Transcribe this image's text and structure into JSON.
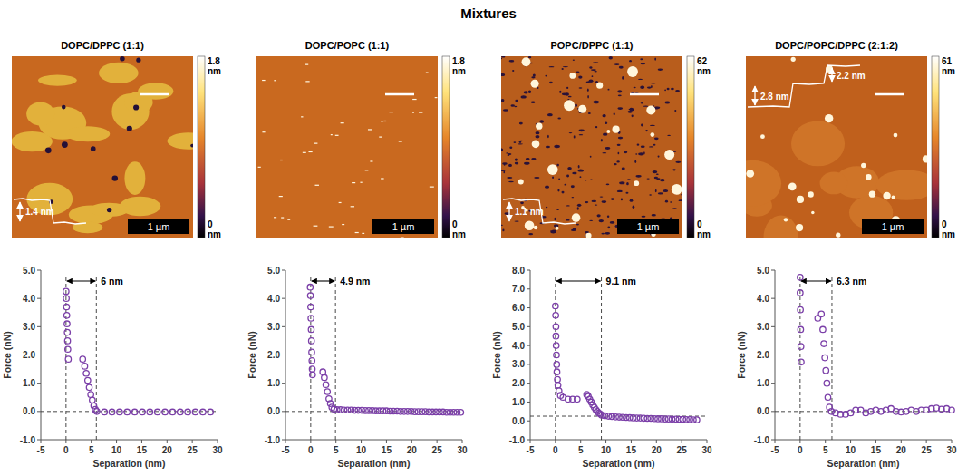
{
  "figure": {
    "title": "Mixtures",
    "images": [
      {
        "title": "DOPC/DPPC (1:1)",
        "colorbar_range": [
          0,
          1.8
        ],
        "colorbar_unit": "nm",
        "scale_bar": "1 µm",
        "profile_labels": [
          "1.4 nm"
        ]
      },
      {
        "title": "DOPC/POPC (1:1)",
        "colorbar_range": [
          0,
          1.8
        ],
        "colorbar_unit": "nm",
        "scale_bar": "1 µm",
        "profile_labels": []
      },
      {
        "title": "POPC/DPPC (1:1)",
        "colorbar_range": [
          0,
          62
        ],
        "colorbar_unit": "nm",
        "scale_bar": "1 µm",
        "profile_labels": [
          "1.1 nm"
        ]
      },
      {
        "title": "DOPC/POPC/DPPC (2:1:2)",
        "colorbar_range": [
          0,
          61
        ],
        "colorbar_unit": "nm",
        "scale_bar": "1 µm",
        "profile_labels": [
          "2.2 nm",
          "2.8 nm"
        ]
      }
    ]
  },
  "chart_data": [
    {
      "type": "scatter",
      "x_label": "Separation (nm)",
      "y_label": "Force (nN)",
      "color": "#7b3fa8",
      "marker": "open-circle",
      "xlim": [
        -5,
        30
      ],
      "xticks": [
        -5,
        0,
        5,
        10,
        15,
        20,
        25,
        30
      ],
      "ylim": [
        -1,
        5
      ],
      "yticks": [
        {
          "value": -1,
          "label": "-1.0"
        },
        {
          "value": 0,
          "label": "0.0"
        },
        {
          "value": 1,
          "label": "1.0"
        },
        {
          "value": 2,
          "label": "2.0"
        },
        {
          "value": 3,
          "label": "3.0"
        },
        {
          "value": 4,
          "label": "4.0"
        },
        {
          "value": 5,
          "label": "5.0"
        }
      ],
      "baseline": 0,
      "annotation": {
        "text": "6 nm",
        "from": 0,
        "to": 6
      },
      "x": [
        0,
        0.05,
        0.1,
        0.15,
        0.2,
        0.25,
        0.3,
        0.35,
        0.45,
        3.3,
        3.7,
        4.0,
        4.3,
        4.6,
        4.9,
        5.2,
        5.5,
        5.8,
        6.1,
        7.6,
        9.1,
        10.6,
        12.1,
        13.6,
        15.1,
        16.6,
        18.1,
        19.6,
        21.1,
        22.6,
        24.1,
        25.6,
        27.1,
        28.6
      ],
      "values": [
        4.25,
        4.0,
        3.7,
        3.4,
        3.1,
        2.8,
        2.5,
        2.2,
        1.85,
        1.85,
        1.6,
        1.35,
        1.1,
        0.85,
        0.6,
        0.4,
        0.2,
        0.07,
        0.0,
        -0.02,
        -0.02,
        -0.02,
        -0.02,
        -0.02,
        -0.02,
        -0.02,
        -0.02,
        -0.02,
        -0.02,
        -0.02,
        -0.02,
        -0.02,
        -0.02,
        -0.02
      ]
    },
    {
      "type": "scatter",
      "x_label": "Separation (nm)",
      "y_label": "Force (nN)",
      "color": "#7b3fa8",
      "marker": "open-circle",
      "xlim": [
        -5,
        30
      ],
      "xticks": [
        -5,
        0,
        5,
        10,
        15,
        20,
        25,
        30
      ],
      "ylim": [
        -1,
        5
      ],
      "yticks": [
        {
          "value": -1,
          "label": "-1.0"
        },
        {
          "value": 0,
          "label": "0.0"
        },
        {
          "value": 1,
          "label": "1.0"
        },
        {
          "value": 2,
          "label": "2.0"
        },
        {
          "value": 3,
          "label": "3.0"
        },
        {
          "value": 4,
          "label": "4.0"
        },
        {
          "value": 5,
          "label": "5.0"
        }
      ],
      "baseline": 0,
      "annotation": {
        "text": "4.9 nm",
        "from": 0,
        "to": 4.9
      },
      "x": [
        -0.1,
        -0.05,
        0,
        0.05,
        0.1,
        0.15,
        0.2,
        0.25,
        0.3,
        0.35,
        2.4,
        2.7,
        3.0,
        3.3,
        3.6,
        3.9,
        4.2,
        4.6,
        5.2,
        5.9,
        6.6,
        7.3,
        8.0,
        8.7,
        9.4,
        10.1,
        10.8,
        11.5,
        12.2,
        12.9,
        13.6,
        14.3,
        15.0,
        15.7,
        16.4,
        17.1,
        17.8,
        18.5,
        19.2,
        19.9,
        20.6,
        21.3,
        22.0,
        22.7,
        23.4,
        24.1,
        24.8,
        25.5,
        26.2,
        26.9,
        27.6,
        28.3,
        29.0,
        29.7
      ],
      "values": [
        4.4,
        4.1,
        3.7,
        3.3,
        2.9,
        2.5,
        2.1,
        1.8,
        1.5,
        1.3,
        1.4,
        1.2,
        0.95,
        0.7,
        0.45,
        0.28,
        0.15,
        0.08,
        0.06,
        0.06,
        0.05,
        0.05,
        0.05,
        0.04,
        0.04,
        0.04,
        0.03,
        0.03,
        0.03,
        0.02,
        0.02,
        0.02,
        0.02,
        0.01,
        0.01,
        0.01,
        0.0,
        0.0,
        0.0,
        0.0,
        -0.01,
        -0.01,
        -0.01,
        -0.01,
        -0.02,
        -0.02,
        -0.02,
        -0.02,
        -0.02,
        -0.03,
        -0.03,
        -0.03,
        -0.03,
        -0.03
      ]
    },
    {
      "type": "scatter",
      "x_label": "Separation (nm)",
      "y_label": "Force (nN)",
      "color": "#7b3fa8",
      "marker": "open-circle",
      "xlim": [
        -5,
        30
      ],
      "xticks": [
        -5,
        0,
        5,
        10,
        15,
        20,
        25,
        30
      ],
      "ylim": [
        -1,
        8
      ],
      "yticks": [
        {
          "value": -1,
          "label": "-1.0"
        },
        {
          "value": 0,
          "label": "0.0"
        },
        {
          "value": 1,
          "label": "1.0"
        },
        {
          "value": 2,
          "label": "2.0"
        },
        {
          "value": 3,
          "label": "3.0"
        },
        {
          "value": 4,
          "label": "4.0"
        },
        {
          "value": 5,
          "label": "5.0"
        },
        {
          "value": 6,
          "label": "6.0"
        },
        {
          "value": 7,
          "label": "7.0"
        },
        {
          "value": 8,
          "label": "8.0"
        }
      ],
      "baseline": 0.25,
      "annotation": {
        "text": "9.1 nm",
        "from": 0,
        "to": 9.1
      },
      "x": [
        0,
        0.05,
        0.1,
        0.1,
        0.15,
        0.2,
        0.25,
        0.3,
        0.4,
        0.5,
        0.7,
        1.0,
        1.5,
        2.5,
        3.4,
        4.3,
        6.2,
        6.5,
        6.8,
        7.1,
        7.4,
        7.7,
        8.0,
        8.3,
        8.6,
        8.9,
        9.2,
        9.8,
        10.5,
        11.2,
        11.9,
        12.6,
        13.3,
        14.0,
        14.7,
        15.4,
        16.1,
        16.8,
        17.5,
        18.2,
        18.9,
        19.6,
        20.3,
        21.0,
        21.7,
        22.4,
        23.1,
        23.8,
        24.5,
        25.2,
        25.9,
        26.6,
        27.3,
        28.0
      ],
      "values": [
        6.1,
        5.6,
        5.0,
        4.5,
        4.0,
        3.5,
        3.0,
        2.6,
        2.2,
        1.9,
        1.6,
        1.35,
        1.25,
        1.15,
        1.15,
        1.15,
        1.4,
        1.3,
        1.15,
        1.0,
        0.85,
        0.72,
        0.6,
        0.5,
        0.42,
        0.36,
        0.3,
        0.27,
        0.25,
        0.23,
        0.21,
        0.2,
        0.19,
        0.18,
        0.17,
        0.16,
        0.15,
        0.15,
        0.14,
        0.13,
        0.13,
        0.12,
        0.11,
        0.11,
        0.1,
        0.1,
        0.09,
        0.09,
        0.08,
        0.08,
        0.07,
        0.07,
        0.06,
        0.06
      ]
    },
    {
      "type": "scatter",
      "x_label": "Separation (nm)",
      "y_label": "Force (nN)",
      "color": "#7b3fa8",
      "marker": "open-circle",
      "xlim": [
        -5,
        30
      ],
      "xticks": [
        -5,
        0,
        5,
        10,
        15,
        20,
        25,
        30
      ],
      "ylim": [
        -1,
        5
      ],
      "yticks": [
        {
          "value": -1,
          "label": "-1.0"
        },
        {
          "value": 0,
          "label": "0.0"
        },
        {
          "value": 1,
          "label": "1.0"
        },
        {
          "value": 2,
          "label": "2.0"
        },
        {
          "value": 3,
          "label": "3.0"
        },
        {
          "value": 4,
          "label": "4.0"
        },
        {
          "value": 5,
          "label": "5.0"
        }
      ],
      "baseline": 0,
      "annotation": {
        "text": "6.3 nm",
        "from": 0,
        "to": 6.3
      },
      "x": [
        0,
        0,
        0.05,
        0.1,
        0.15,
        0.2,
        3.5,
        4.2,
        4.5,
        4.7,
        4.9,
        5.1,
        5.3,
        5.5,
        5.8,
        6.2,
        7,
        8,
        9,
        10,
        11,
        12,
        13,
        14,
        15,
        16,
        17,
        18,
        19,
        20,
        21,
        22,
        23,
        24,
        25,
        26,
        27,
        28,
        29,
        30
      ],
      "values": [
        4.75,
        4.2,
        3.6,
        2.9,
        2.3,
        1.75,
        3.3,
        3.45,
        2.9,
        2.4,
        1.9,
        1.45,
        1.0,
        0.5,
        0.15,
        0.0,
        -0.05,
        -0.1,
        -0.1,
        -0.05,
        0.05,
        0.05,
        -0.05,
        0.0,
        0.05,
        0.0,
        0.05,
        0.1,
        0.0,
        -0.02,
        0.0,
        0.05,
        0.0,
        0.05,
        0.05,
        0.1,
        0.12,
        0.08,
        0.1,
        0.05
      ]
    }
  ]
}
